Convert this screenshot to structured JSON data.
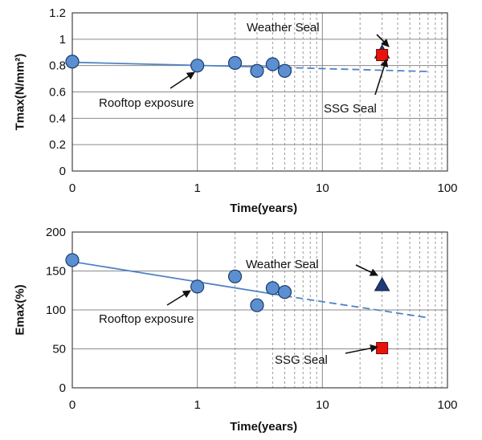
{
  "chart_data": [
    {
      "type": "scatter",
      "xscale": "log",
      "xlabel": "Time(years)",
      "ylabel": "Tmax(N/mm²)",
      "xlim": [
        0,
        100
      ],
      "ylim": [
        0,
        1.2
      ],
      "xticks": [
        "0",
        "1",
        "10",
        "100"
      ],
      "yticks": [
        "0",
        "0.2",
        "0.4",
        "0.6",
        "0.8",
        "1",
        "1.2"
      ],
      "grid": true,
      "series": [
        {
          "name": "Rooftop exposure",
          "marker": "circle",
          "color": "#5b8fd0",
          "points": [
            {
              "x": 0,
              "y": 0.83
            },
            {
              "x": 1,
              "y": 0.8
            },
            {
              "x": 2,
              "y": 0.82
            },
            {
              "x": 3,
              "y": 0.76
            },
            {
              "x": 4,
              "y": 0.81
            },
            {
              "x": 5,
              "y": 0.76
            }
          ]
        },
        {
          "name": "Weather Seal",
          "marker": "triangle",
          "color": "#1f3c78",
          "points": [
            {
              "x": 30,
              "y": 0.9
            }
          ]
        },
        {
          "name": "SSG Seal",
          "marker": "square",
          "color": "#e8140c",
          "points": [
            {
              "x": 30,
              "y": 0.88
            }
          ]
        }
      ],
      "trend": {
        "color": "#4f84c4",
        "solid": [
          [
            0,
            0.825
          ],
          [
            5,
            0.785
          ]
        ],
        "dashed": [
          [
            5,
            0.785
          ],
          [
            70,
            0.755
          ]
        ]
      },
      "annotations": [
        "Weather Seal",
        "Rooftop exposure",
        "SSG Seal"
      ]
    },
    {
      "type": "scatter",
      "xscale": "log",
      "xlabel": "Time(years)",
      "ylabel": "Emax(%)",
      "xlim": [
        0,
        100
      ],
      "ylim": [
        0,
        200
      ],
      "xticks": [
        "0",
        "1",
        "10",
        "100"
      ],
      "yticks": [
        "0",
        "50",
        "100",
        "150",
        "200"
      ],
      "grid": true,
      "series": [
        {
          "name": "Rooftop exposure",
          "marker": "circle",
          "color": "#5b8fd0",
          "points": [
            {
              "x": 0,
              "y": 164
            },
            {
              "x": 1,
              "y": 130
            },
            {
              "x": 2,
              "y": 143
            },
            {
              "x": 3,
              "y": 106
            },
            {
              "x": 4,
              "y": 128
            },
            {
              "x": 5,
              "y": 123
            }
          ]
        },
        {
          "name": "Weather Seal",
          "marker": "triangle",
          "color": "#1f3c78",
          "points": [
            {
              "x": 30,
              "y": 132
            }
          ]
        },
        {
          "name": "SSG Seal",
          "marker": "square",
          "color": "#e8140c",
          "points": [
            {
              "x": 30,
              "y": 51
            }
          ]
        }
      ],
      "trend": {
        "color": "#4f84c4",
        "solid": [
          [
            0,
            162
          ],
          [
            5,
            118
          ]
        ],
        "dashed": [
          [
            5,
            118
          ],
          [
            70,
            90
          ]
        ]
      },
      "annotations": [
        "Weather Seal",
        "Rooftop exposure",
        "SSG Seal"
      ]
    }
  ]
}
